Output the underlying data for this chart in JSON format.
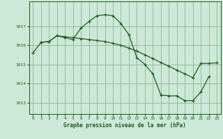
{
  "title": "Graphe pression niveau de la mer (hPa)",
  "background_color": "#cce8d8",
  "grid_color": "#99bb99",
  "line_color": "#1a5c1a",
  "xlim": [
    -0.5,
    23.5
  ],
  "ylim": [
    1012.4,
    1018.3
  ],
  "yticks": [
    1013,
    1014,
    1015,
    1016,
    1017
  ],
  "xticks": [
    0,
    1,
    2,
    3,
    4,
    5,
    6,
    7,
    8,
    9,
    10,
    11,
    12,
    13,
    14,
    15,
    16,
    17,
    18,
    19,
    20,
    21,
    22,
    23
  ],
  "series1_x": [
    0,
    1,
    2,
    3,
    4,
    5,
    6,
    7,
    8,
    9,
    10,
    11,
    12,
    13,
    14,
    15,
    16,
    17,
    18,
    19,
    20,
    21,
    22,
    23
  ],
  "series1_y": [
    1015.6,
    1016.15,
    1016.2,
    1016.5,
    1016.45,
    1016.4,
    1016.35,
    1016.3,
    1016.25,
    1016.2,
    1016.1,
    1016.0,
    1015.85,
    1015.7,
    1015.5,
    1015.3,
    1015.1,
    1014.9,
    1014.7,
    1014.5,
    1014.3,
    1015.05,
    1015.05,
    1015.08
  ],
  "series2_x": [
    1,
    2,
    3,
    4,
    5,
    6,
    7,
    8,
    9,
    10,
    11,
    12,
    13,
    14,
    15,
    16,
    17,
    18,
    19,
    20,
    21,
    22
  ],
  "series2_y": [
    1016.15,
    1016.2,
    1016.5,
    1016.4,
    1016.3,
    1016.9,
    1017.25,
    1017.55,
    1017.6,
    1017.55,
    1017.15,
    1016.55,
    1015.35,
    1015.0,
    1014.5,
    1013.4,
    1013.35,
    1013.35,
    1013.1,
    1013.1,
    1013.55,
    1014.35
  ]
}
